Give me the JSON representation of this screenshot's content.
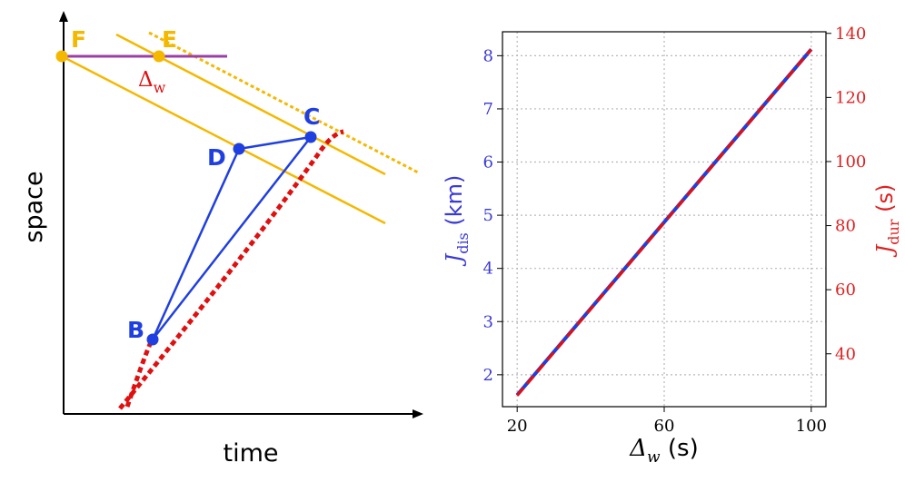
{
  "diagram": {
    "x_axis_label": "time",
    "y_axis_label": "space",
    "points": {
      "F": "F",
      "E": "E",
      "C": "C",
      "D": "D",
      "B": "B"
    },
    "delta_label_main": "Δ",
    "delta_label_sub": "w",
    "colors": {
      "yellow": "#f5b800",
      "purple": "#9b3fa6",
      "blue": "#1f3fe0",
      "red": "#e01010"
    }
  },
  "chart_data": {
    "type": "line",
    "x": [
      20,
      100
    ],
    "xlim": [
      16,
      104
    ],
    "x_ticks": [
      20,
      60,
      100
    ],
    "xlabel_main": "Δ",
    "xlabel_sub": "w",
    "xlabel_unit": " (s)",
    "series": [
      {
        "name": "J_dis",
        "axis": "left",
        "style": "solid",
        "color": "#1f3fe0",
        "values": [
          1.62,
          8.12
        ]
      },
      {
        "name": "J_dur",
        "axis": "right",
        "style": "dashed",
        "color": "#e01010",
        "values": [
          27,
          135
        ]
      }
    ],
    "left_axis": {
      "ylim": [
        1.4,
        8.45
      ],
      "ticks": [
        2,
        3,
        4,
        5,
        6,
        7,
        8
      ],
      "label_main": "J",
      "label_sub": "dis",
      "label_unit": " (km)",
      "color": "#3a3ad6"
    },
    "right_axis": {
      "ylim": [
        23.5,
        140.5
      ],
      "ticks": [
        40,
        60,
        80,
        100,
        120,
        140
      ],
      "label_main": "J",
      "label_sub": "dur",
      "label_unit": " (s)",
      "color": "#e02020"
    },
    "grid": true
  }
}
